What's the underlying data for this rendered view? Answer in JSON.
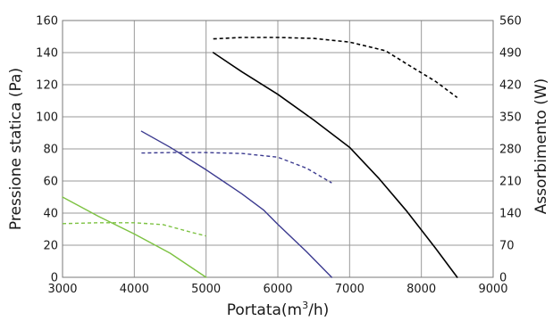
{
  "chart_data": {
    "type": "line",
    "xlabel_main": "Portata(m",
    "xlabel_sup": "3",
    "xlabel_tail": "/h)",
    "ylabel_left": "Pressione statica (Pa)",
    "ylabel_right": "Assorbimento (W)",
    "xlim": [
      3000,
      9000
    ],
    "ylim_left": [
      0,
      160
    ],
    "ylim_right": [
      0,
      560
    ],
    "x_ticks": [
      "3000",
      "4000",
      "5000",
      "6000",
      "7000",
      "8000",
      "9000"
    ],
    "y_left_ticks": [
      "0",
      "20",
      "40",
      "60",
      "80",
      "100",
      "120",
      "140",
      "160"
    ],
    "y_right_ticks": [
      "0",
      "70",
      "140",
      "210",
      "280",
      "350",
      "420",
      "490",
      "560"
    ],
    "grid": true,
    "series": [
      {
        "axis": "left",
        "style": "solid",
        "color": "#7dc242",
        "points": [
          [
            3000,
            50
          ],
          [
            3500,
            38
          ],
          [
            4000,
            27
          ],
          [
            4500,
            15
          ],
          [
            5000,
            0
          ]
        ]
      },
      {
        "axis": "right",
        "style": "dashed",
        "color": "#7dc242",
        "points": [
          [
            3000,
            117
          ],
          [
            3500,
            119
          ],
          [
            4000,
            119
          ],
          [
            4400,
            115
          ],
          [
            4800,
            98
          ],
          [
            5000,
            90
          ]
        ]
      },
      {
        "axis": "left",
        "style": "solid",
        "color": "#3b3a8f",
        "points": [
          [
            4100,
            91
          ],
          [
            4500,
            81
          ],
          [
            5000,
            67
          ],
          [
            5500,
            52
          ],
          [
            5800,
            42
          ],
          [
            6000,
            33
          ],
          [
            6400,
            16
          ],
          [
            6750,
            0
          ]
        ]
      },
      {
        "axis": "right",
        "style": "dashed",
        "color": "#3b3a8f",
        "points": [
          [
            4100,
            271
          ],
          [
            4500,
            272
          ],
          [
            5000,
            272
          ],
          [
            5500,
            270
          ],
          [
            6000,
            262
          ],
          [
            6400,
            238
          ],
          [
            6750,
            206
          ]
        ]
      },
      {
        "axis": "left",
        "style": "solid",
        "color": "#000000",
        "points": [
          [
            5100,
            140
          ],
          [
            5500,
            128
          ],
          [
            6000,
            114
          ],
          [
            6500,
            98
          ],
          [
            7000,
            81
          ],
          [
            7400,
            62
          ],
          [
            7800,
            41
          ],
          [
            8200,
            18
          ],
          [
            8500,
            0
          ]
        ]
      },
      {
        "axis": "right",
        "style": "dashed",
        "color": "#000000",
        "points": [
          [
            5100,
            520
          ],
          [
            5500,
            523
          ],
          [
            6000,
            523
          ],
          [
            6500,
            521
          ],
          [
            7000,
            513
          ],
          [
            7500,
            494
          ],
          [
            7800,
            465
          ],
          [
            8200,
            427
          ],
          [
            8500,
            392
          ]
        ]
      }
    ]
  }
}
